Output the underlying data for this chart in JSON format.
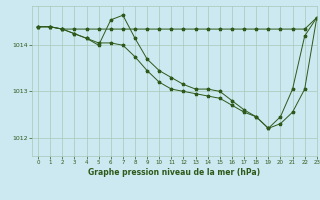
{
  "title": "Graphe pression niveau de la mer (hPa)",
  "bg_color": "#cce8f0",
  "line_color": "#2d5a1b",
  "grid_color": "#a8c8b8",
  "xlim": [
    -0.5,
    23
  ],
  "ylim": [
    1011.6,
    1014.85
  ],
  "yticks": [
    1012,
    1013,
    1014
  ],
  "xticks": [
    0,
    1,
    2,
    3,
    4,
    5,
    6,
    7,
    8,
    9,
    10,
    11,
    12,
    13,
    14,
    15,
    16,
    17,
    18,
    19,
    20,
    21,
    22,
    23
  ],
  "series1_x": [
    0,
    1,
    2,
    3,
    4,
    5,
    6,
    7,
    8,
    9,
    10,
    11,
    12,
    13,
    14,
    15,
    16,
    17,
    18,
    19,
    20,
    21,
    22,
    23
  ],
  "series1_y": [
    1014.4,
    1014.4,
    1014.35,
    1014.35,
    1014.35,
    1014.35,
    1014.35,
    1014.35,
    1014.35,
    1014.35,
    1014.35,
    1014.35,
    1014.35,
    1014.35,
    1014.35,
    1014.35,
    1014.35,
    1014.35,
    1014.35,
    1014.35,
    1014.35,
    1014.35,
    1014.35,
    1014.6
  ],
  "series2_x": [
    0,
    1,
    2,
    3,
    4,
    5,
    6,
    7,
    8,
    9,
    10,
    11,
    12,
    13,
    14,
    15,
    16,
    17,
    18,
    19,
    20,
    21,
    22,
    23
  ],
  "series2_y": [
    1014.4,
    1014.4,
    1014.35,
    1014.25,
    1014.15,
    1014.0,
    1014.55,
    1014.65,
    1014.15,
    1013.7,
    1013.45,
    1013.3,
    1013.15,
    1013.05,
    1013.05,
    1013.0,
    1012.8,
    1012.6,
    1012.45,
    1012.2,
    1012.45,
    1013.05,
    1014.2,
    1014.6
  ],
  "series3_x": [
    0,
    1,
    2,
    3,
    4,
    5,
    6,
    7,
    8,
    9,
    10,
    11,
    12,
    13,
    14,
    15,
    16,
    17,
    18,
    19,
    20,
    21,
    22,
    23
  ],
  "series3_y": [
    1014.4,
    1014.4,
    1014.35,
    1014.25,
    1014.15,
    1014.05,
    1014.05,
    1014.0,
    1013.75,
    1013.45,
    1013.2,
    1013.05,
    1013.0,
    1012.95,
    1012.9,
    1012.85,
    1012.7,
    1012.55,
    1012.45,
    1012.2,
    1012.3,
    1012.55,
    1013.05,
    1014.6
  ]
}
